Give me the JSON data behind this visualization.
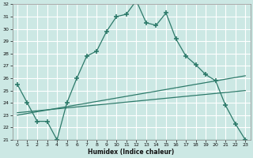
{
  "xlabel": "Humidex (Indice chaleur)",
  "background_color": "#cce8e4",
  "grid_color": "#ffffff",
  "line_color": "#2d7a6a",
  "xlim": [
    -0.5,
    23.5
  ],
  "ylim": [
    21,
    32
  ],
  "xticks": [
    0,
    1,
    2,
    3,
    4,
    5,
    6,
    7,
    8,
    9,
    10,
    11,
    12,
    13,
    14,
    15,
    16,
    17,
    18,
    19,
    20,
    21,
    22,
    23
  ],
  "yticks": [
    21,
    22,
    23,
    24,
    25,
    26,
    27,
    28,
    29,
    30,
    31,
    32
  ],
  "curve1_x": [
    0,
    1,
    2,
    3,
    4,
    5,
    6,
    7,
    8,
    9,
    10,
    11,
    12,
    13,
    14,
    15,
    16,
    17,
    18,
    19,
    20,
    21,
    22,
    23
  ],
  "curve1_y": [
    25.5,
    24.0,
    22.5,
    22.5,
    21.0,
    24.0,
    26.0,
    27.8,
    28.2,
    29.8,
    31.0,
    31.2,
    32.3,
    30.5,
    30.3,
    31.3,
    29.2,
    27.8,
    27.1,
    26.3,
    25.8,
    23.8,
    22.3,
    21.0
  ],
  "curve2_x": [
    0,
    23
  ],
  "curve2_y": [
    21.0,
    21.0
  ],
  "curve3_x": [
    0,
    23
  ],
  "curve3_y": [
    23.0,
    26.2
  ],
  "curve4_x": [
    0,
    23
  ],
  "curve4_y": [
    23.2,
    25.0
  ]
}
